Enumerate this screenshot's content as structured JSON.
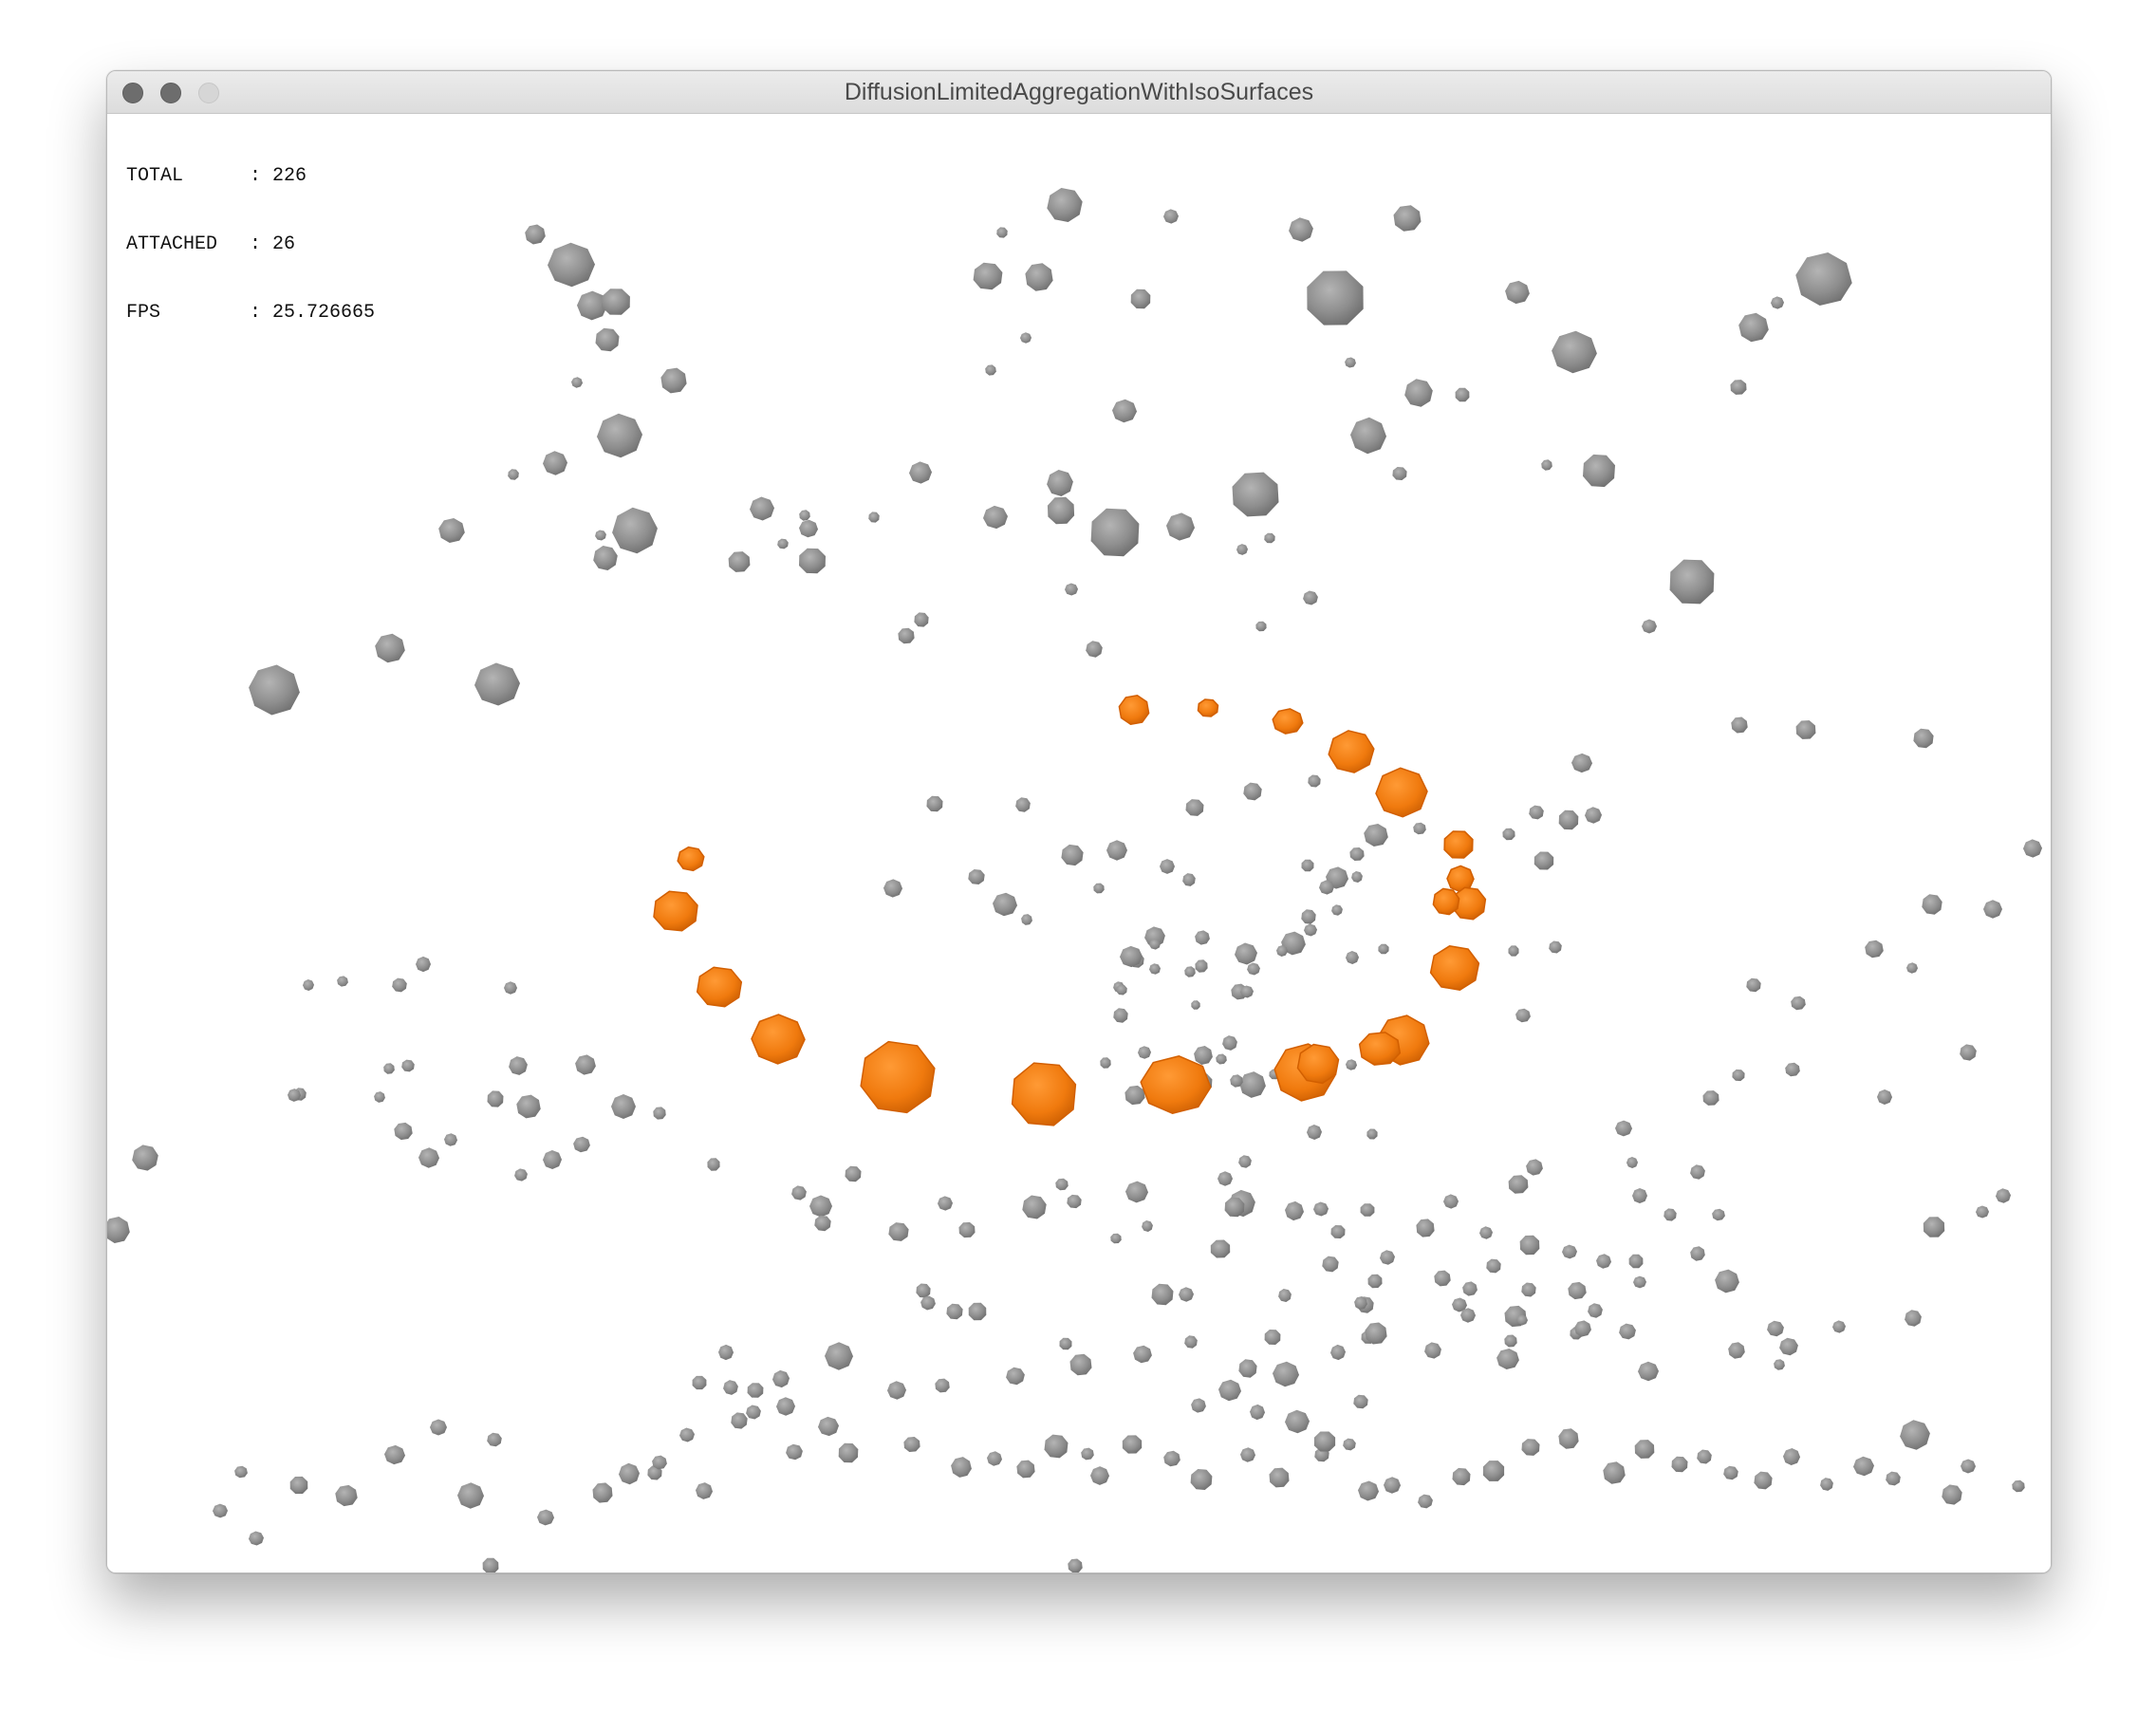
{
  "window": {
    "title": "DiffusionLimitedAggregationWithIsoSurfaces"
  },
  "hud": {
    "total_label": "TOTAL",
    "total_value": ": 226",
    "attached_label": "ATTACHED",
    "attached_value": ": 26",
    "fps_label": "FPS",
    "fps_value": ": 25.726665"
  },
  "colors": {
    "free_particle": "#8a8a8a",
    "attached_particle": "#f07a0e",
    "background": "#ffffff"
  }
}
